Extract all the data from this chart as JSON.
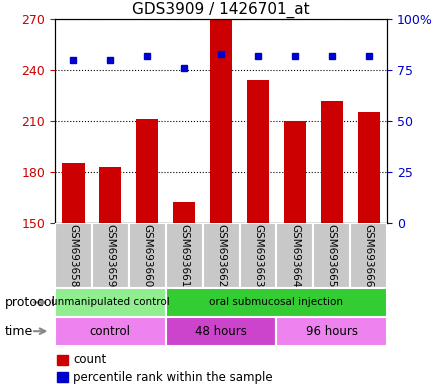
{
  "title": "GDS3909 / 1426701_at",
  "samples": [
    "GSM693658",
    "GSM693659",
    "GSM693660",
    "GSM693661",
    "GSM693662",
    "GSM693663",
    "GSM693664",
    "GSM693665",
    "GSM693666"
  ],
  "count_values": [
    185,
    183,
    211,
    162,
    270,
    234,
    210,
    222,
    215
  ],
  "percentile_values": [
    80,
    80,
    82,
    76,
    83,
    82,
    82,
    82,
    82
  ],
  "ylim_left": [
    150,
    270
  ],
  "ylim_right": [
    0,
    100
  ],
  "yticks_left": [
    150,
    180,
    210,
    240,
    270
  ],
  "yticks_right": [
    0,
    25,
    50,
    75,
    100
  ],
  "bar_color": "#cc0000",
  "dot_color": "#0000cc",
  "protocol_groups": [
    {
      "label": "unmanipulated control",
      "start": 0,
      "end": 3,
      "color": "#90ee90"
    },
    {
      "label": "oral submucosal injection",
      "start": 3,
      "end": 9,
      "color": "#33cc33"
    }
  ],
  "time_groups": [
    {
      "label": "control",
      "start": 0,
      "end": 3,
      "color": "#ee82ee"
    },
    {
      "label": "48 hours",
      "start": 3,
      "end": 6,
      "color": "#cc44cc"
    },
    {
      "label": "96 hours",
      "start": 6,
      "end": 9,
      "color": "#ee82ee"
    }
  ],
  "background_color": "#ffffff",
  "title_fontsize": 11,
  "tick_fontsize": 9
}
